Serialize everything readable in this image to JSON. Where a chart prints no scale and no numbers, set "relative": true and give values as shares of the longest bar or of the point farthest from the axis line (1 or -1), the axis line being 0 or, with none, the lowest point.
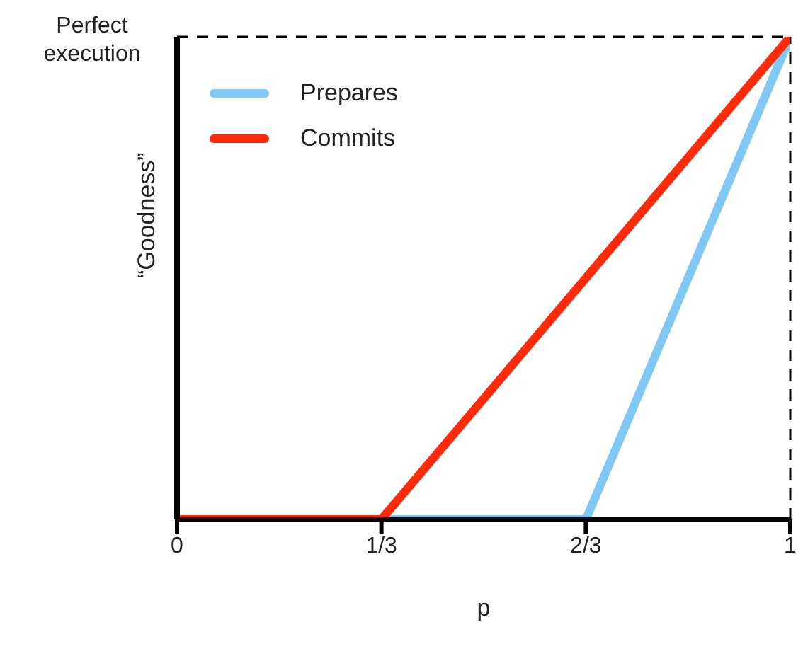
{
  "chart_data": {
    "type": "line",
    "xlabel": "p",
    "ylabel": "“Goodness”",
    "relative": true,
    "xlim": [
      0,
      1
    ],
    "xticks": [
      0,
      {
        "value": 0.3333,
        "label": "1/3"
      },
      {
        "value": 0.6667,
        "label": "2/3"
      },
      1
    ],
    "series": [
      {
        "name": "Prepares",
        "color": "#80c8f4",
        "x": [
          0,
          0.6667,
          1
        ],
        "values": [
          0,
          0,
          1
        ]
      },
      {
        "name": "Commits",
        "color": "#ff2a0a",
        "x": [
          0,
          0.3333,
          1
        ],
        "values": [
          0,
          0,
          1
        ]
      }
    ],
    "ref_lines": [
      {
        "axis": "y",
        "value": 1,
        "label": "Perfect execution",
        "color": "#000000",
        "line_style": "dashed"
      },
      {
        "axis": "x",
        "value": 1,
        "color": "#000000",
        "line_style": "dashed"
      }
    ],
    "legend": "top left",
    "grid": false,
    "marker": "none",
    "line_style": "solid"
  }
}
